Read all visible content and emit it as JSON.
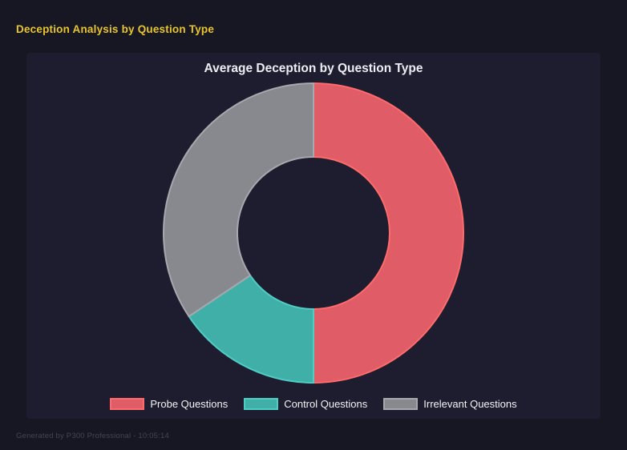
{
  "header": {
    "title": "Deception Analysis by Question Type",
    "title_color": "#e9c52d"
  },
  "panel": {
    "background": "#1d1d2f",
    "page_background": "#171723"
  },
  "footer": {
    "text": "Generated by P300 Professional - 10:05:14"
  },
  "chart_data": {
    "type": "doughnut",
    "title": "Average Deception by Question Type",
    "labels": [
      "Probe Questions",
      "Control Questions",
      "Irrelevant Questions"
    ],
    "values_pct": [
      50,
      15.6,
      34.4
    ],
    "colors": {
      "fill": [
        "#e05c66",
        "#3fafa8",
        "#88888f"
      ],
      "border": [
        "#ff6b6b",
        "#4ecdc4",
        "#a7a7ad"
      ]
    },
    "cutout_pct": 50.5,
    "rotation_deg": 0,
    "legend_position": "bottom",
    "border_width": 2
  }
}
